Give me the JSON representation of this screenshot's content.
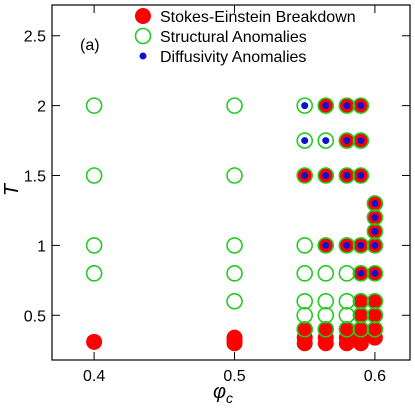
{
  "chart_data": {
    "type": "scatter",
    "panel_label": "(a)",
    "xlabel_main": "φ",
    "xlabel_sub": "c",
    "ylabel": "T",
    "xlim": [
      0.37,
      0.625
    ],
    "ylim": [
      0.18,
      2.72
    ],
    "xticks": [
      0.4,
      0.5,
      0.6
    ],
    "xtick_labels": [
      "0.4",
      "0.5",
      "0.6"
    ],
    "yticks": [
      0.5,
      1,
      1.5,
      2,
      2.5
    ],
    "ytick_labels": [
      "0.5",
      "1",
      "1.5",
      "2",
      "2.5"
    ],
    "grid": false,
    "legend_position": "top-right",
    "colors": {
      "stokes_einstein": "#ff0000",
      "structural": "#22cc22",
      "diffusivity": "#1010d0"
    },
    "series": [
      {
        "name": "Stokes-Einstein Breakdown",
        "marker": "filled-circle",
        "points": [
          [
            0.4,
            0.31
          ],
          [
            0.5,
            0.3
          ],
          [
            0.5,
            0.32
          ],
          [
            0.5,
            0.34
          ],
          [
            0.55,
            0.3
          ],
          [
            0.55,
            0.34
          ],
          [
            0.55,
            0.4
          ],
          [
            0.565,
            0.3
          ],
          [
            0.565,
            0.34
          ],
          [
            0.565,
            0.4
          ],
          [
            0.58,
            0.3
          ],
          [
            0.58,
            0.34
          ],
          [
            0.58,
            0.4
          ],
          [
            0.59,
            0.3
          ],
          [
            0.59,
            0.34
          ],
          [
            0.59,
            0.4
          ],
          [
            0.59,
            0.5
          ],
          [
            0.59,
            0.6
          ],
          [
            0.6,
            0.34
          ],
          [
            0.6,
            0.4
          ],
          [
            0.6,
            0.5
          ],
          [
            0.6,
            0.6
          ],
          [
            0.55,
            1.5
          ],
          [
            0.565,
            1.5
          ],
          [
            0.58,
            1.5
          ],
          [
            0.59,
            1.5
          ],
          [
            0.58,
            1.75
          ],
          [
            0.59,
            1.75
          ],
          [
            0.565,
            2.0
          ],
          [
            0.58,
            2.0
          ],
          [
            0.59,
            2.0
          ],
          [
            0.565,
            1.0
          ],
          [
            0.58,
            1.0
          ],
          [
            0.59,
            1.0
          ],
          [
            0.59,
            0.8
          ],
          [
            0.6,
            0.8
          ],
          [
            0.6,
            1.0
          ],
          [
            0.6,
            1.1
          ],
          [
            0.6,
            1.2
          ],
          [
            0.6,
            1.3
          ]
        ]
      },
      {
        "name": "Structural Anomalies",
        "marker": "open-circle",
        "points": [
          [
            0.4,
            2.0
          ],
          [
            0.4,
            1.5
          ],
          [
            0.4,
            1.0
          ],
          [
            0.4,
            0.8
          ],
          [
            0.5,
            2.0
          ],
          [
            0.5,
            1.5
          ],
          [
            0.5,
            1.0
          ],
          [
            0.5,
            0.8
          ],
          [
            0.5,
            0.6
          ],
          [
            0.55,
            2.0
          ],
          [
            0.55,
            1.75
          ],
          [
            0.55,
            1.5
          ],
          [
            0.55,
            1.0
          ],
          [
            0.55,
            0.8
          ],
          [
            0.55,
            0.6
          ],
          [
            0.55,
            0.5
          ],
          [
            0.55,
            0.4
          ],
          [
            0.565,
            2.0
          ],
          [
            0.565,
            1.75
          ],
          [
            0.565,
            1.5
          ],
          [
            0.565,
            1.0
          ],
          [
            0.565,
            0.8
          ],
          [
            0.565,
            0.6
          ],
          [
            0.565,
            0.5
          ],
          [
            0.565,
            0.4
          ],
          [
            0.58,
            2.0
          ],
          [
            0.58,
            1.75
          ],
          [
            0.58,
            1.5
          ],
          [
            0.58,
            1.0
          ],
          [
            0.58,
            0.8
          ],
          [
            0.58,
            0.6
          ],
          [
            0.58,
            0.5
          ],
          [
            0.58,
            0.4
          ],
          [
            0.59,
            2.0
          ],
          [
            0.59,
            1.75
          ],
          [
            0.59,
            1.5
          ],
          [
            0.59,
            1.0
          ],
          [
            0.59,
            0.8
          ],
          [
            0.59,
            0.6
          ],
          [
            0.59,
            0.5
          ],
          [
            0.59,
            0.4
          ],
          [
            0.6,
            1.3
          ],
          [
            0.6,
            1.2
          ],
          [
            0.6,
            1.1
          ],
          [
            0.6,
            1.0
          ],
          [
            0.6,
            0.8
          ],
          [
            0.6,
            0.6
          ],
          [
            0.6,
            0.5
          ],
          [
            0.6,
            0.4
          ]
        ]
      },
      {
        "name": "Diffusivity Anomalies",
        "marker": "small-dot",
        "points": [
          [
            0.55,
            2.0
          ],
          [
            0.565,
            2.0
          ],
          [
            0.58,
            2.0
          ],
          [
            0.59,
            2.0
          ],
          [
            0.55,
            1.75
          ],
          [
            0.565,
            1.75
          ],
          [
            0.58,
            1.75
          ],
          [
            0.59,
            1.75
          ],
          [
            0.55,
            1.5
          ],
          [
            0.565,
            1.5
          ],
          [
            0.58,
            1.5
          ],
          [
            0.59,
            1.5
          ],
          [
            0.565,
            1.0
          ],
          [
            0.58,
            1.0
          ],
          [
            0.59,
            1.0
          ],
          [
            0.59,
            0.8
          ],
          [
            0.6,
            0.8
          ],
          [
            0.6,
            1.0
          ],
          [
            0.6,
            1.1
          ],
          [
            0.6,
            1.2
          ],
          [
            0.6,
            1.3
          ]
        ]
      }
    ]
  }
}
